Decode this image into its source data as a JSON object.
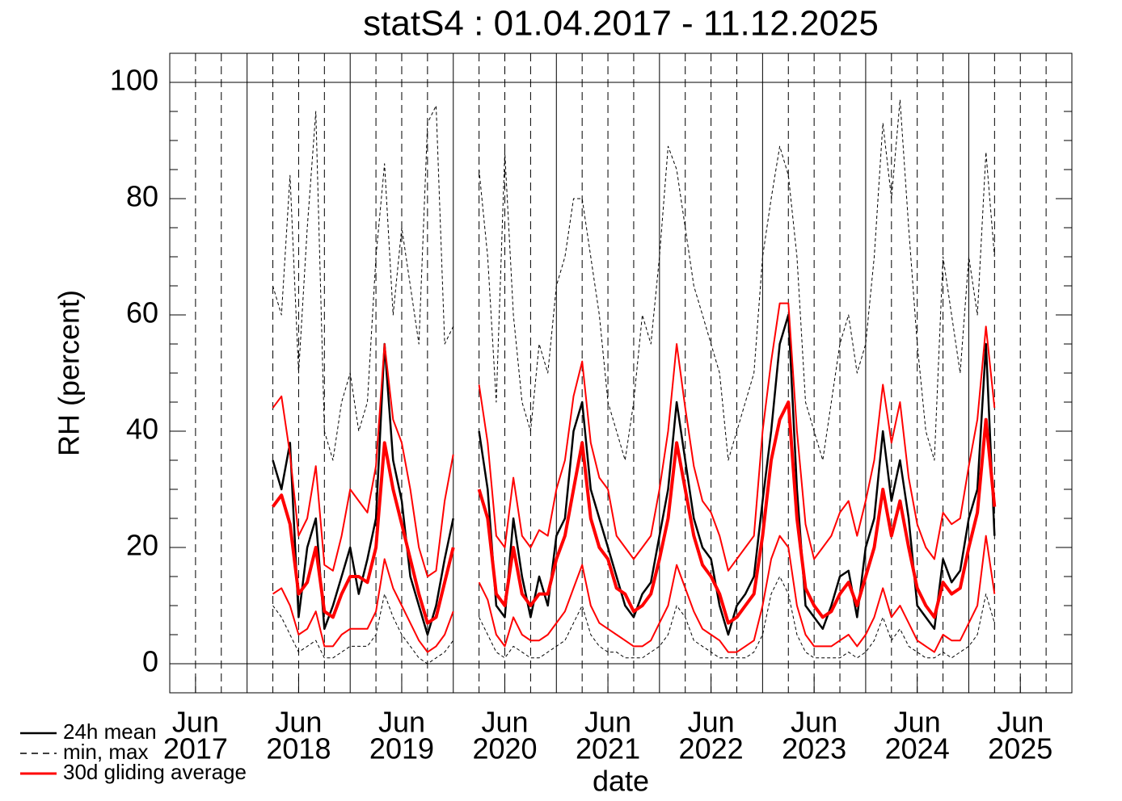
{
  "chart_data": {
    "type": "line",
    "title": "statS4 : 01.04.2017 - 11.12.2025",
    "xlabel": "date",
    "ylabel": "RH (percent)",
    "xlim": [
      "2017-03",
      "2025-12"
    ],
    "ylim": [
      -5,
      105
    ],
    "yticks": [
      0,
      20,
      40,
      60,
      80,
      100
    ],
    "yticks_minor": [
      5,
      10,
      15,
      25,
      30,
      35,
      45,
      50,
      55,
      65,
      70,
      75,
      85,
      90,
      95
    ],
    "yref_lines": [
      0,
      100
    ],
    "xticks": [
      {
        "value": "2017-06",
        "label": [
          "Jun",
          "2017"
        ]
      },
      {
        "value": "2018-06",
        "label": [
          "Jun",
          "2018"
        ]
      },
      {
        "value": "2019-06",
        "label": [
          "Jun",
          "2019"
        ]
      },
      {
        "value": "2020-06",
        "label": [
          "Jun",
          "2020"
        ]
      },
      {
        "value": "2021-06",
        "label": [
          "Jun",
          "2021"
        ]
      },
      {
        "value": "2022-06",
        "label": [
          "Jun",
          "2022"
        ]
      },
      {
        "value": "2023-06",
        "label": [
          "Jun",
          "2023"
        ]
      },
      {
        "value": "2024-06",
        "label": [
          "Jun",
          "2024"
        ]
      },
      {
        "value": "2025-06",
        "label": [
          "Jun",
          "2025"
        ]
      }
    ],
    "xgrid_major": [
      "2017-12",
      "2018-12",
      "2019-12",
      "2020-12",
      "2021-12",
      "2022-12",
      "2023-12",
      "2024-12"
    ],
    "xgrid_minor": [
      "2017-06",
      "2017-09",
      "2018-03",
      "2018-06",
      "2018-09",
      "2019-03",
      "2019-06",
      "2019-09",
      "2020-03",
      "2020-06",
      "2020-09",
      "2021-03",
      "2021-06",
      "2021-09",
      "2022-03",
      "2022-06",
      "2022-09",
      "2023-03",
      "2023-06",
      "2023-09",
      "2024-03",
      "2024-06",
      "2024-09",
      "2025-03",
      "2025-06",
      "2025-09"
    ],
    "x": [
      "2018-03",
      "2018-04",
      "2018-05",
      "2018-06",
      "2018-07",
      "2018-08",
      "2018-09",
      "2018-10",
      "2018-11",
      "2018-12",
      "2019-01",
      "2019-02",
      "2019-03",
      "2019-04",
      "2019-05",
      "2019-06",
      "2019-07",
      "2019-08",
      "2019-09",
      "2019-10",
      "2019-11",
      "2019-12",
      "2020-01",
      "2020-02",
      "2020-03",
      "2020-04",
      "2020-05",
      "2020-06",
      "2020-07",
      "2020-08",
      "2020-09",
      "2020-10",
      "2020-11",
      "2020-12",
      "2021-01",
      "2021-02",
      "2021-03",
      "2021-04",
      "2021-05",
      "2021-06",
      "2021-07",
      "2021-08",
      "2021-09",
      "2021-10",
      "2021-11",
      "2021-12",
      "2022-01",
      "2022-02",
      "2022-03",
      "2022-04",
      "2022-05",
      "2022-06",
      "2022-07",
      "2022-08",
      "2022-09",
      "2022-10",
      "2022-11",
      "2022-12",
      "2023-01",
      "2023-02",
      "2023-03",
      "2023-04",
      "2023-05",
      "2023-06",
      "2023-07",
      "2023-08",
      "2023-09",
      "2023-10",
      "2023-11",
      "2023-12",
      "2024-01",
      "2024-02",
      "2024-03",
      "2024-04",
      "2024-05",
      "2024-06",
      "2024-07",
      "2024-08",
      "2024-09",
      "2024-10",
      "2024-11",
      "2024-12",
      "2025-01",
      "2025-02",
      "2025-03"
    ],
    "series": [
      {
        "name": "24h mean",
        "color": "#000000",
        "width": 2.5,
        "values": [
          35,
          30,
          38,
          8,
          20,
          25,
          6,
          10,
          15,
          20,
          12,
          18,
          25,
          55,
          35,
          28,
          15,
          10,
          5,
          10,
          18,
          25,
          null,
          null,
          40,
          30,
          10,
          8,
          25,
          15,
          8,
          15,
          10,
          22,
          25,
          40,
          45,
          30,
          25,
          20,
          15,
          10,
          8,
          12,
          14,
          22,
          30,
          45,
          35,
          25,
          20,
          18,
          10,
          5,
          10,
          12,
          15,
          28,
          40,
          55,
          60,
          30,
          10,
          8,
          6,
          10,
          15,
          16,
          8,
          20,
          25,
          40,
          28,
          35,
          25,
          10,
          8,
          6,
          18,
          14,
          16,
          25,
          30,
          55,
          22
        ]
      },
      {
        "name": "min, max",
        "color": "#000000",
        "dashed": true,
        "width": 1,
        "low": [
          10,
          8,
          5,
          2,
          3,
          4,
          1,
          1,
          2,
          3,
          3,
          3,
          5,
          12,
          8,
          5,
          3,
          1,
          0,
          1,
          2,
          4,
          null,
          null,
          8,
          5,
          2,
          1,
          3,
          2,
          1,
          1,
          2,
          3,
          4,
          7,
          10,
          5,
          3,
          2,
          2,
          1,
          1,
          1,
          2,
          3,
          5,
          10,
          8,
          4,
          3,
          2,
          1,
          1,
          1,
          1,
          2,
          5,
          12,
          15,
          12,
          5,
          2,
          1,
          1,
          1,
          1,
          2,
          1,
          2,
          4,
          8,
          4,
          6,
          3,
          2,
          1,
          1,
          2,
          1,
          2,
          3,
          5,
          12,
          7
        ],
        "high": [
          65,
          60,
          84,
          50,
          75,
          95,
          40,
          35,
          45,
          50,
          40,
          45,
          70,
          86,
          60,
          75,
          65,
          55,
          93,
          96,
          55,
          58,
          null,
          null,
          85,
          70,
          45,
          88,
          60,
          45,
          40,
          55,
          50,
          65,
          70,
          80,
          80,
          70,
          60,
          45,
          40,
          35,
          45,
          60,
          55,
          70,
          89,
          85,
          75,
          65,
          60,
          55,
          50,
          35,
          40,
          45,
          50,
          70,
          80,
          89,
          84,
          70,
          45,
          40,
          35,
          45,
          55,
          60,
          50,
          55,
          70,
          93,
          80,
          97,
          75,
          55,
          40,
          35,
          70,
          60,
          50,
          70,
          60,
          88,
          70
        ]
      },
      {
        "name": "30d gliding average",
        "color": "#ff0000",
        "width": 4,
        "values": [
          27,
          29,
          24,
          12,
          14,
          20,
          9,
          8,
          12,
          15,
          15,
          14,
          20,
          38,
          30,
          24,
          18,
          12,
          7,
          8,
          14,
          20,
          null,
          null,
          30,
          25,
          12,
          10,
          20,
          12,
          10,
          12,
          12,
          18,
          22,
          30,
          38,
          25,
          20,
          18,
          13,
          12,
          9,
          10,
          12,
          18,
          25,
          38,
          30,
          22,
          17,
          15,
          12,
          7,
          8,
          10,
          12,
          22,
          35,
          42,
          45,
          25,
          13,
          10,
          8,
          9,
          12,
          14,
          10,
          15,
          20,
          30,
          22,
          28,
          20,
          13,
          10,
          8,
          14,
          12,
          13,
          20,
          26,
          42,
          27
        ],
        "low": [
          12,
          13,
          10,
          5,
          6,
          9,
          3,
          3,
          5,
          6,
          6,
          6,
          9,
          18,
          13,
          10,
          7,
          4,
          2,
          3,
          5,
          9,
          null,
          null,
          14,
          11,
          5,
          3,
          8,
          5,
          4,
          4,
          5,
          7,
          9,
          13,
          17,
          10,
          7,
          6,
          5,
          4,
          3,
          3,
          4,
          7,
          10,
          17,
          13,
          9,
          6,
          5,
          4,
          2,
          2,
          3,
          4,
          10,
          18,
          22,
          20,
          10,
          5,
          3,
          3,
          3,
          4,
          5,
          3,
          5,
          8,
          13,
          8,
          10,
          7,
          4,
          3,
          2,
          5,
          4,
          4,
          7,
          10,
          22,
          12
        ],
        "high": [
          44,
          46,
          36,
          22,
          25,
          34,
          17,
          16,
          22,
          30,
          28,
          26,
          34,
          55,
          42,
          38,
          30,
          20,
          15,
          16,
          28,
          36,
          null,
          null,
          48,
          38,
          22,
          20,
          32,
          22,
          20,
          23,
          22,
          30,
          35,
          46,
          52,
          38,
          32,
          30,
          22,
          20,
          18,
          20,
          22,
          30,
          40,
          55,
          44,
          34,
          28,
          26,
          22,
          16,
          18,
          20,
          22,
          40,
          52,
          62,
          62,
          40,
          24,
          18,
          20,
          22,
          26,
          28,
          22,
          28,
          35,
          48,
          38,
          45,
          32,
          24,
          20,
          18,
          26,
          24,
          25,
          34,
          42,
          58,
          44
        ]
      }
    ]
  }
}
